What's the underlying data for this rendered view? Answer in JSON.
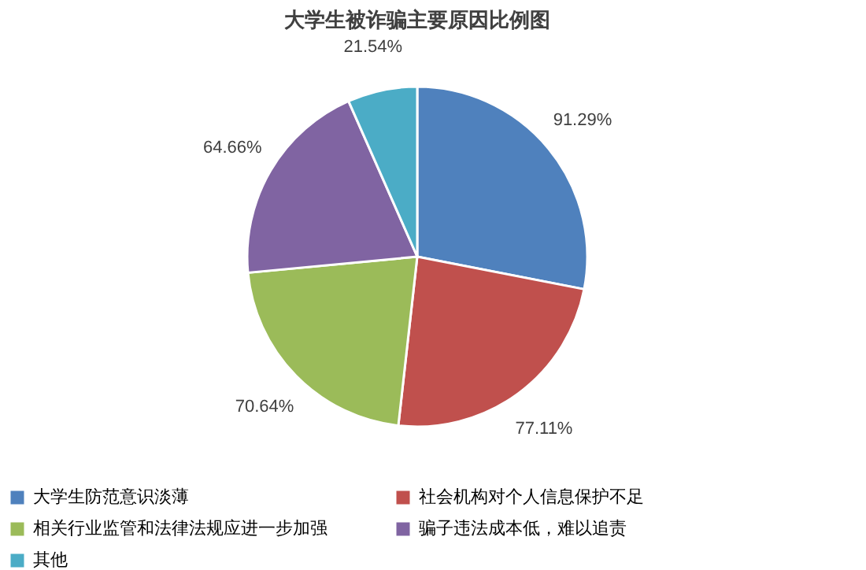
{
  "chart_data": {
    "type": "pie",
    "title": "大学生被诈骗主要原因比例图",
    "categories": [
      "大学生防范意识淡薄",
      "社会机构对个人信息保护不足",
      "相关行业监管和法律法规应进一步加强",
      "骗子违法成本低，难以追责",
      "其他"
    ],
    "values": [
      91.29,
      77.11,
      70.64,
      64.66,
      21.54
    ],
    "colors": [
      "#4f81bd",
      "#c0504d",
      "#9bbb59",
      "#8064a2",
      "#4bacc6"
    ],
    "value_labels": [
      "91.29%",
      "77.11%",
      "70.64%",
      "64.66%",
      "21.54%"
    ],
    "legend": "bottom"
  }
}
